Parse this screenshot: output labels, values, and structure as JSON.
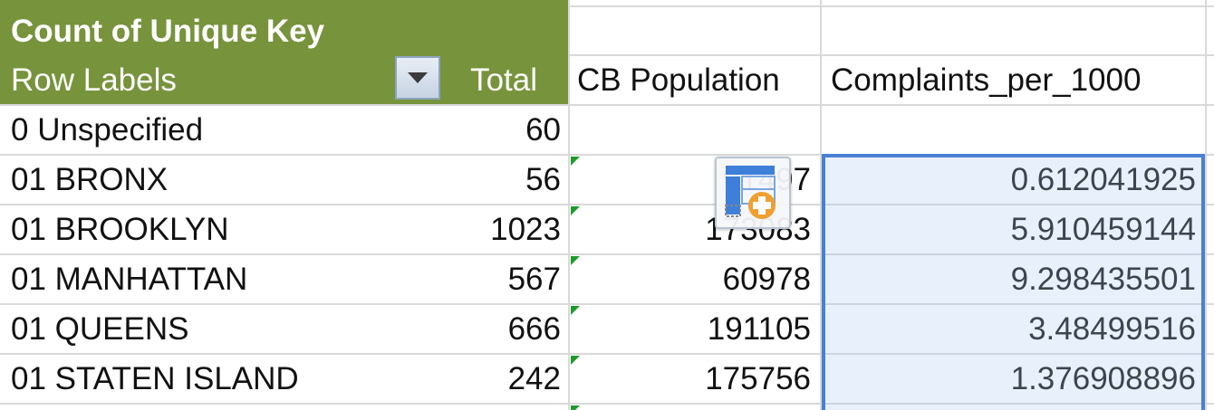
{
  "pivot": {
    "value_field_header": "Count of Unique Key",
    "row_labels_header": "Row Labels",
    "total_header": "Total",
    "filter_button_icon": "dropdown-arrow-icon"
  },
  "extra_columns": {
    "population_header": "CB Population",
    "complaints_header": "Complaints_per_1000"
  },
  "rows": [
    {
      "label": "0 Unspecified",
      "total": "60",
      "population": "",
      "complaints": ""
    },
    {
      "label": "01 BRONX",
      "total": "56",
      "population": "91497",
      "complaints": "0.612041925"
    },
    {
      "label": "01 BROOKLYN",
      "total": "1023",
      "population": "173083",
      "complaints": "5.910459144"
    },
    {
      "label": "01 MANHATTAN",
      "total": "567",
      "population": "60978",
      "complaints": "9.298435501"
    },
    {
      "label": "01 QUEENS",
      "total": "666",
      "population": "191105",
      "complaints": "3.48499516"
    },
    {
      "label": "01 STATEN ISLAND",
      "total": "242",
      "population": "175756",
      "complaints": "1.376908896"
    }
  ],
  "quick_analysis_icon": "quick-analysis-icon",
  "colors": {
    "pivot_header": "#77933c",
    "selection_border": "#4a7fd4",
    "error_indicator": "#1f9b2e"
  }
}
